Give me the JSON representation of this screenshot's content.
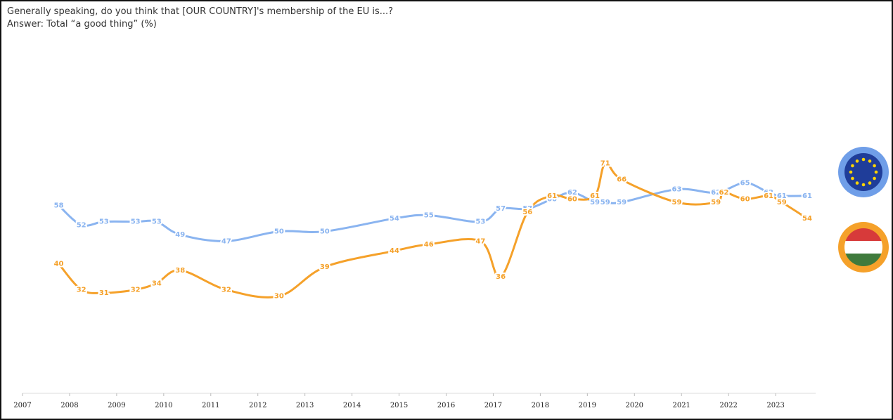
{
  "chart_data": {
    "type": "line",
    "title": "Generally speaking, do you think that [OUR COUNTRY]'s membership of the EU is...?",
    "subtitle": "Answer: Total “a good thing” (%)",
    "xlim": [
      2007,
      2023.85
    ],
    "xticks": [
      2007,
      2008,
      2009,
      2010,
      2011,
      2012,
      2013,
      2014,
      2015,
      2016,
      2017,
      2018,
      2019,
      2020,
      2021,
      2022,
      2023
    ],
    "ylim": [
      0,
      100
    ],
    "series": [
      {
        "color": "#8ab4f0",
        "x": [
          2007.77,
          2008.25,
          2008.73,
          2009.4,
          2009.85,
          2010.35,
          2011.33,
          2012.45,
          2013.42,
          2014.9,
          2015.63,
          2016.73,
          2017.16,
          2017.73,
          2018.25,
          2018.68,
          2019.16,
          2019.38,
          2019.73,
          2020.9,
          2021.73,
          2022.35,
          2022.85,
          2023.13,
          2023.67
        ],
        "values": [
          58,
          52,
          53,
          53,
          53,
          49,
          47,
          50,
          50,
          54,
          55,
          53,
          57,
          57,
          60,
          62,
          59,
          59,
          59,
          63,
          62,
          65,
          62,
          61,
          61
        ]
      },
      {
        "color": "#f5a12a",
        "x": [
          2007.77,
          2008.25,
          2008.73,
          2009.4,
          2009.85,
          2010.35,
          2011.33,
          2012.45,
          2013.42,
          2014.9,
          2015.63,
          2016.73,
          2017.16,
          2017.73,
          2018.25,
          2018.68,
          2019.16,
          2019.38,
          2019.73,
          2020.9,
          2021.73,
          2021.9,
          2022.35,
          2022.85,
          2023.13,
          2023.67
        ],
        "values": [
          40,
          32,
          31,
          32,
          34,
          38,
          32,
          30,
          39,
          44,
          46,
          47,
          36,
          56,
          61,
          60,
          61,
          71,
          66,
          59,
          59,
          62,
          60,
          61,
          59,
          54
        ]
      }
    ]
  }
}
